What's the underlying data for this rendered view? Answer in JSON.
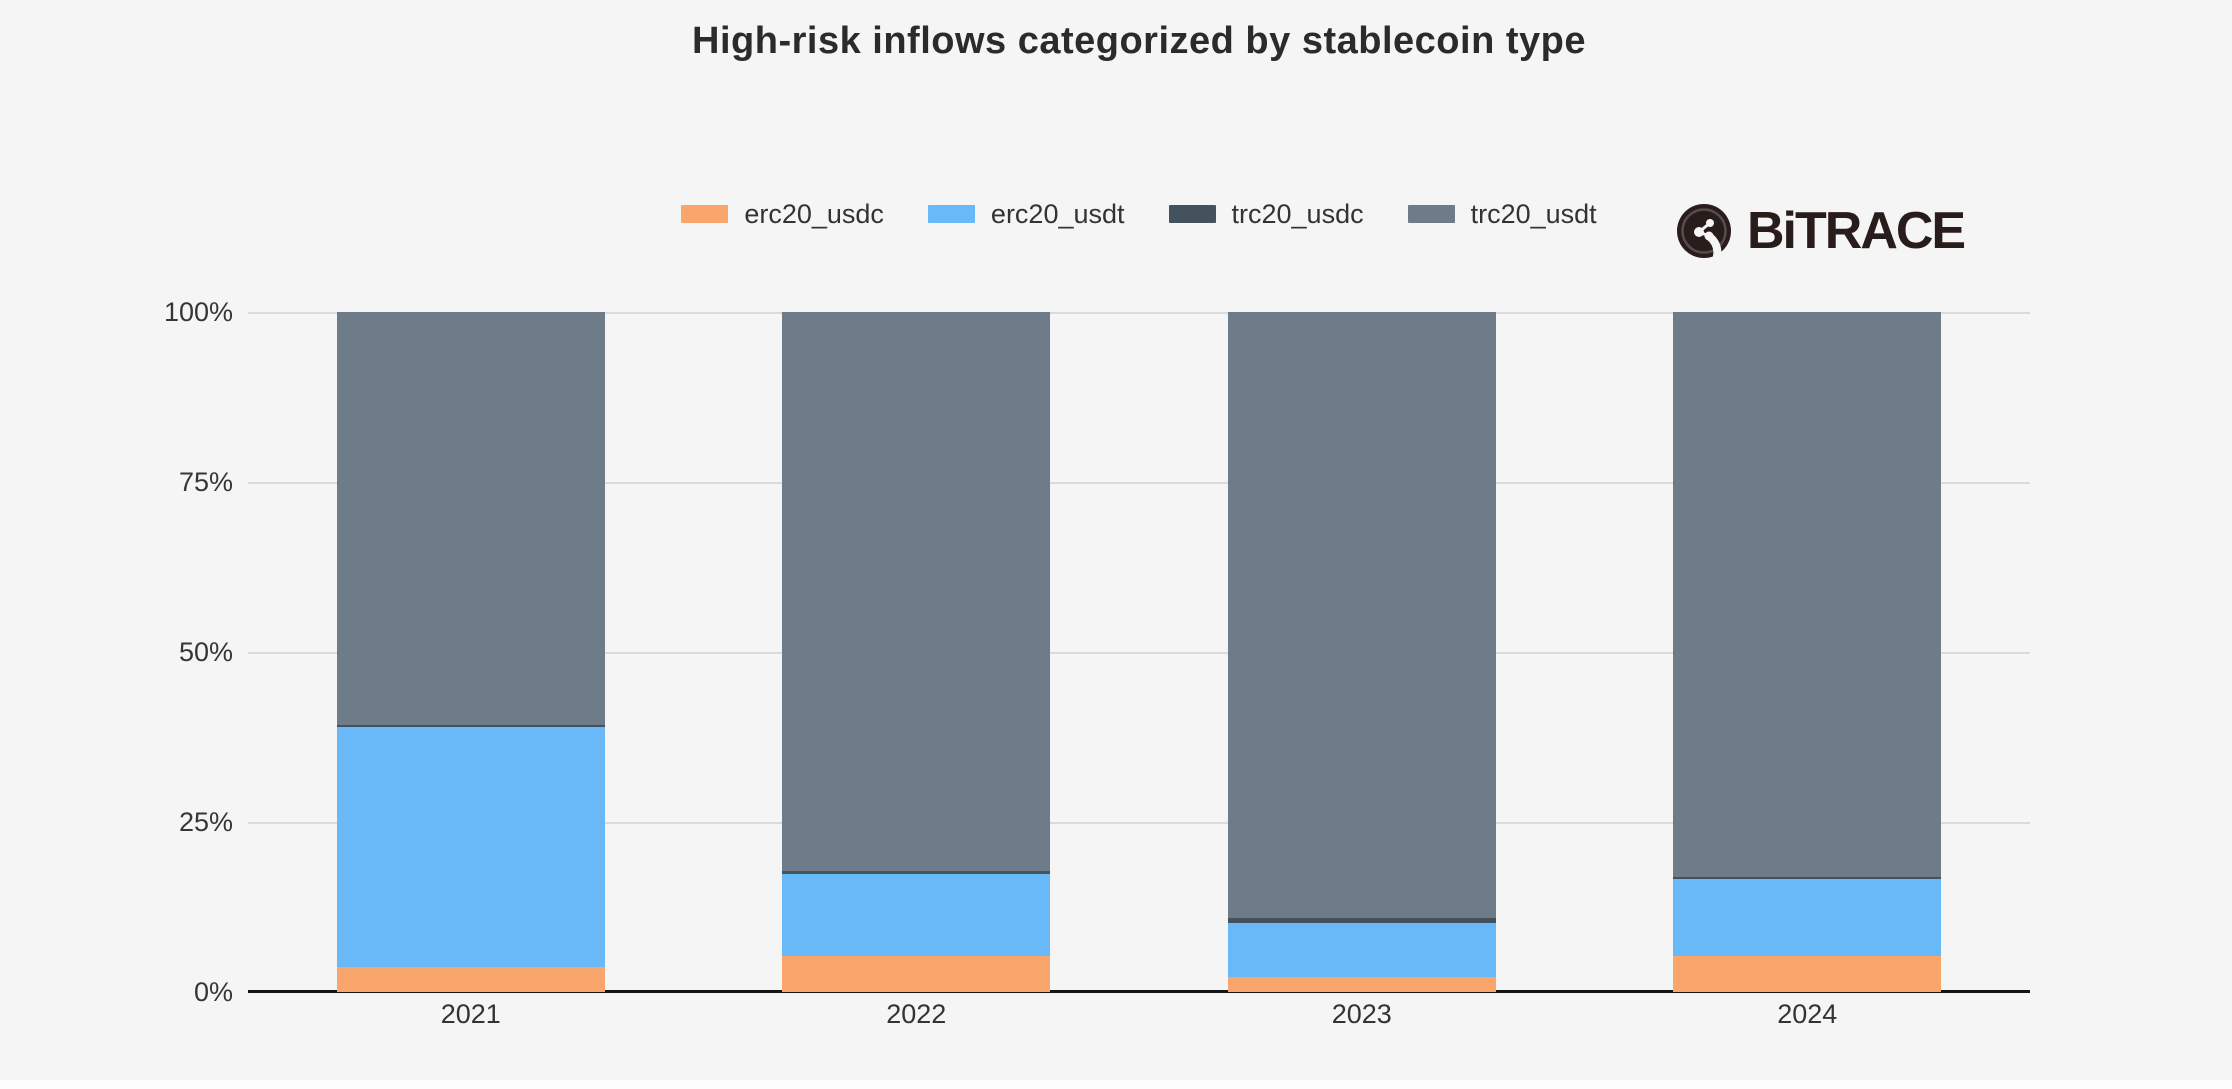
{
  "page": {
    "background": "#F5F5F6",
    "title": "High-risk inflows categorized by stablecoin type"
  },
  "logo": {
    "text": "BiTRACE",
    "color": "#291D1B",
    "icon": "bitrace-network-node-icon"
  },
  "colors": {
    "erc20_usdc": "#F9A66C",
    "erc20_usdt": "#69B8F8",
    "trc20_usdc": "#44525E",
    "trc20_usdt": "#6E7C8A",
    "gridline": "#DBDBDB",
    "axis_line": "#141414",
    "tick_text": "#363636",
    "title_text": "#2B2B2B"
  },
  "legend": {
    "items": [
      {
        "label": "erc20_usdc",
        "color": "#F9A66C"
      },
      {
        "label": "erc20_usdt",
        "color": "#69B8F8"
      },
      {
        "label": "trc20_usdc",
        "color": "#44525E"
      },
      {
        "label": "trc20_usdt",
        "color": "#6E7C8A"
      }
    ]
  },
  "axes": {
    "y_ticks": [
      "0%",
      "25%",
      "50%",
      "75%",
      "100%"
    ],
    "x_ticks": [
      "2021",
      "2022",
      "2023",
      "2024"
    ]
  },
  "chart_data": {
    "type": "bar",
    "stacked": true,
    "units": "percent of total",
    "title": "High-risk inflows categorized by stablecoin type",
    "categories": [
      "2021",
      "2022",
      "2023",
      "2024"
    ],
    "series": [
      {
        "name": "erc20_usdc",
        "color": "#F9A66C",
        "values": [
          3.7,
          5.3,
          2.2,
          5.3
        ]
      },
      {
        "name": "erc20_usdt",
        "color": "#69B8F8",
        "values": [
          35.2,
          12.1,
          8.0,
          11.3
        ]
      },
      {
        "name": "trc20_usdc",
        "color": "#44525E",
        "values": [
          0.4,
          0.4,
          0.7,
          0.3
        ]
      },
      {
        "name": "trc20_usdt",
        "color": "#6E7C8A",
        "values": [
          60.7,
          82.2,
          89.1,
          83.1
        ]
      }
    ],
    "ylim": [
      0,
      100
    ],
    "ytick_labels": [
      "0%",
      "25%",
      "50%",
      "75%",
      "100%"
    ],
    "grid": "horizontal",
    "legend_position": "top-center"
  }
}
